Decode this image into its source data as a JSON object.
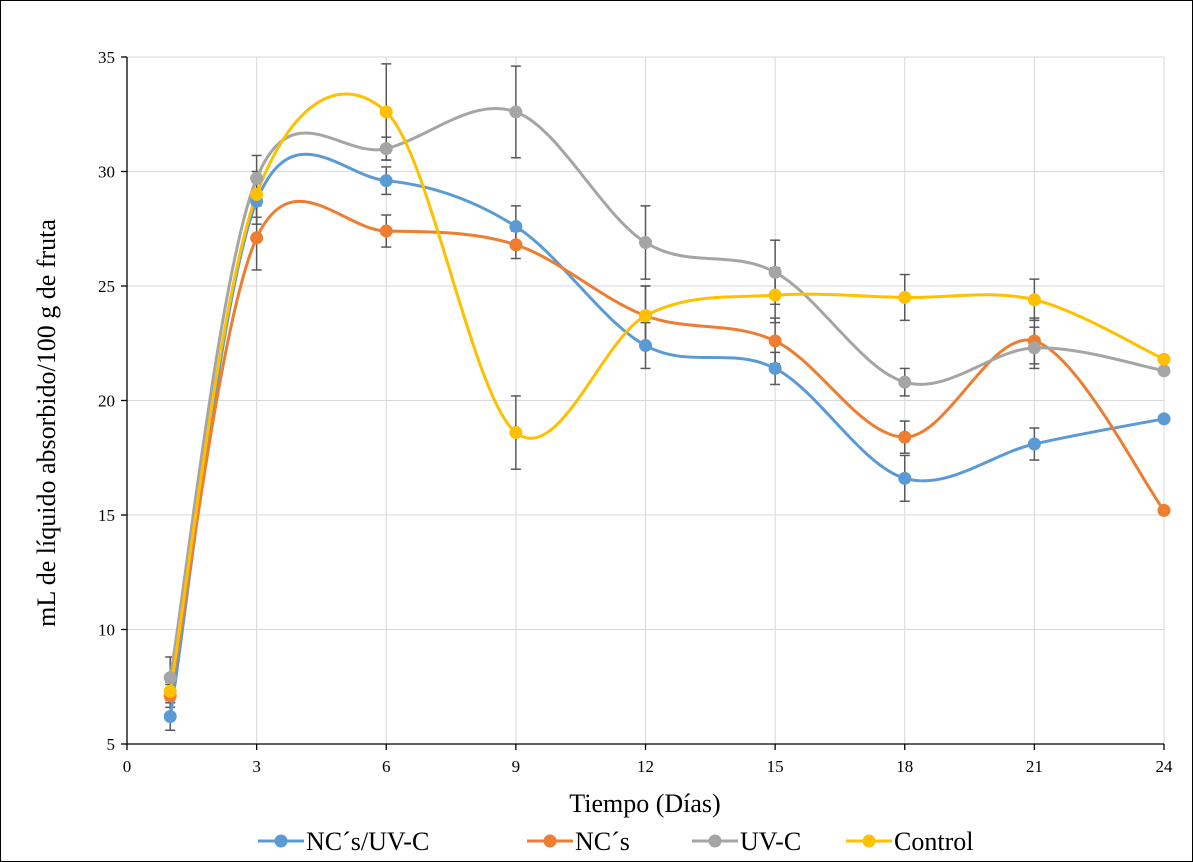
{
  "chart_data": {
    "type": "line",
    "xlabel": "Tiempo (Días)",
    "ylabel": "mL de líquido absorbido/100 g de fruta",
    "xlim": [
      0,
      24
    ],
    "ylim": [
      5,
      35
    ],
    "xticks": [
      0,
      3,
      6,
      9,
      12,
      15,
      18,
      21,
      24
    ],
    "yticks": [
      5,
      10,
      15,
      20,
      25,
      30,
      35
    ],
    "grid": true,
    "legend_position": "bottom",
    "series": [
      {
        "name": "NC´s/UV-C",
        "color": "#5b9bd5",
        "x": [
          1,
          3,
          6,
          9,
          12,
          15,
          18,
          21,
          24
        ],
        "y": [
          6.2,
          28.7,
          29.6,
          27.6,
          22.4,
          21.4,
          16.6,
          18.1,
          19.2
        ],
        "err": [
          0.6,
          1.0,
          0.6,
          0.9,
          1.0,
          0.7,
          1.0,
          0.7,
          0
        ]
      },
      {
        "name": "NC´s",
        "color": "#ed7d31",
        "x": [
          1,
          3,
          6,
          9,
          12,
          15,
          18,
          21,
          24
        ],
        "y": [
          7.1,
          27.1,
          27.4,
          26.8,
          23.7,
          22.6,
          18.4,
          22.6,
          15.2
        ],
        "err": [
          0.5,
          1.4,
          0.7,
          0.6,
          1.3,
          1.0,
          0.7,
          1.0,
          0
        ]
      },
      {
        "name": "UV-C",
        "color": "#a5a5a5",
        "x": [
          1,
          3,
          6,
          9,
          12,
          15,
          18,
          21,
          24
        ],
        "y": [
          7.9,
          29.7,
          31.0,
          32.6,
          26.9,
          25.6,
          20.8,
          22.3,
          21.3
        ],
        "err": [
          0.9,
          1.0,
          0.5,
          2.0,
          1.6,
          1.4,
          0.6,
          0.9,
          0
        ]
      },
      {
        "name": "Control",
        "color": "#ffc000",
        "x": [
          1,
          3,
          6,
          9,
          12,
          15,
          18,
          21,
          24
        ],
        "y": [
          7.3,
          29.0,
          32.6,
          18.6,
          23.7,
          24.6,
          24.5,
          24.4,
          21.8
        ],
        "err": [
          0.4,
          1.0,
          2.1,
          1.6,
          1.3,
          1.2,
          1.0,
          0.9,
          0
        ]
      }
    ]
  }
}
